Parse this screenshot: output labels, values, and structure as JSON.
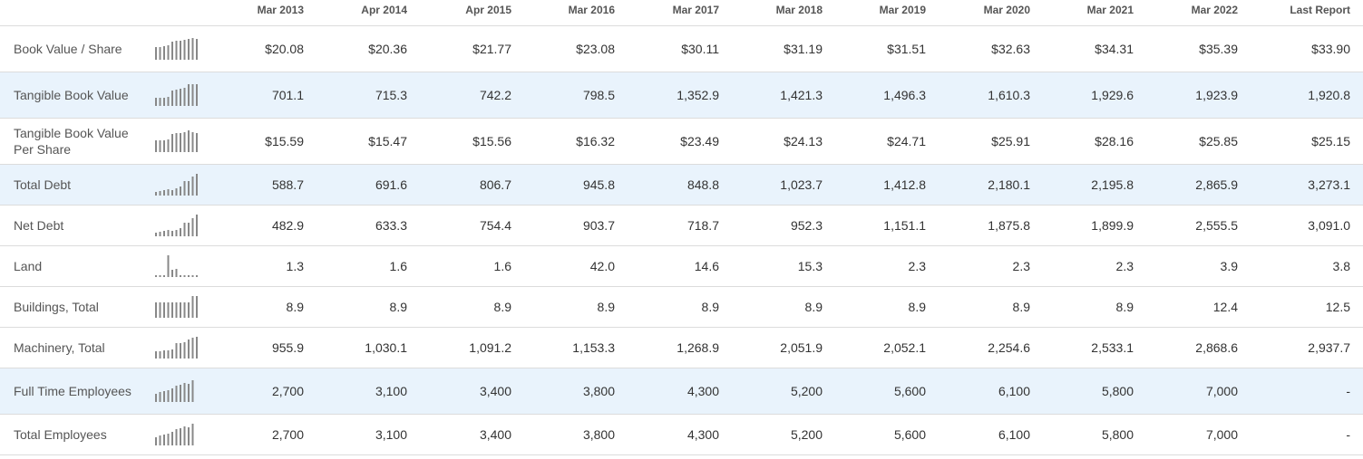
{
  "columns": [
    "Mar 2013",
    "Apr 2014",
    "Apr 2015",
    "Mar 2016",
    "Mar 2017",
    "Mar 2018",
    "Mar 2019",
    "Mar 2020",
    "Mar 2021",
    "Mar 2022",
    "Last Report"
  ],
  "rows": [
    {
      "label": "Book Value / Share",
      "values": [
        "$20.08",
        "$20.36",
        "$21.77",
        "$23.08",
        "$30.11",
        "$31.19",
        "$31.51",
        "$32.63",
        "$34.31",
        "$35.39",
        "$33.90"
      ]
    },
    {
      "label": "Tangible Book Value",
      "values": [
        "701.1",
        "715.3",
        "742.2",
        "798.5",
        "1,352.9",
        "1,421.3",
        "1,496.3",
        "1,610.3",
        "1,929.6",
        "1,923.9",
        "1,920.8"
      ]
    },
    {
      "label": "Tangible Book Value Per Share",
      "values": [
        "$15.59",
        "$15.47",
        "$15.56",
        "$16.32",
        "$23.49",
        "$24.13",
        "$24.71",
        "$25.91",
        "$28.16",
        "$25.85",
        "$25.15"
      ]
    },
    {
      "label": "Total Debt",
      "values": [
        "588.7",
        "691.6",
        "806.7",
        "945.8",
        "848.8",
        "1,023.7",
        "1,412.8",
        "2,180.1",
        "2,195.8",
        "2,865.9",
        "3,273.1"
      ]
    },
    {
      "label": "Net Debt",
      "values": [
        "482.9",
        "633.3",
        "754.4",
        "903.7",
        "718.7",
        "952.3",
        "1,151.1",
        "1,875.8",
        "1,899.9",
        "2,555.5",
        "3,091.0"
      ]
    },
    {
      "label": "Land",
      "values": [
        "1.3",
        "1.6",
        "1.6",
        "42.0",
        "14.6",
        "15.3",
        "2.3",
        "2.3",
        "2.3",
        "3.9",
        "3.8"
      ]
    },
    {
      "label": "Buildings, Total",
      "values": [
        "8.9",
        "8.9",
        "8.9",
        "8.9",
        "8.9",
        "8.9",
        "8.9",
        "8.9",
        "8.9",
        "12.4",
        "12.5"
      ]
    },
    {
      "label": "Machinery, Total",
      "values": [
        "955.9",
        "1,030.1",
        "1,091.2",
        "1,153.3",
        "1,268.9",
        "2,051.9",
        "2,052.1",
        "2,254.6",
        "2,533.1",
        "2,868.6",
        "2,937.7"
      ]
    },
    {
      "label": "Full Time Employees",
      "values": [
        "2,700",
        "3,100",
        "3,400",
        "3,800",
        "4,300",
        "5,200",
        "5,600",
        "6,100",
        "5,800",
        "7,000",
        "-"
      ]
    },
    {
      "label": "Total Employees",
      "values": [
        "2,700",
        "3,100",
        "3,400",
        "3,800",
        "4,300",
        "5,200",
        "5,600",
        "6,100",
        "5,800",
        "7,000",
        "-"
      ]
    }
  ]
}
